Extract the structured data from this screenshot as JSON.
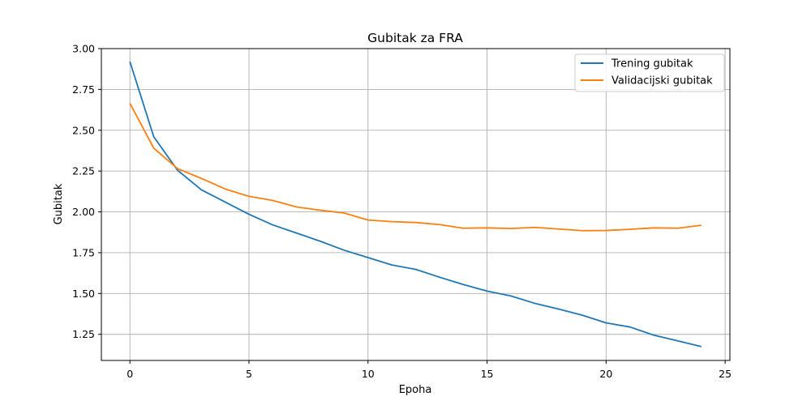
{
  "chart_data": {
    "type": "line",
    "title": "Gubitak za FRA",
    "xlabel": "Epoha",
    "ylabel": "Gubitak",
    "xlim": [
      -1.2,
      25.2
    ],
    "ylim": [
      1.09,
      3.0
    ],
    "xticks": [
      0,
      5,
      10,
      15,
      20,
      25
    ],
    "yticks": [
      1.25,
      1.5,
      1.75,
      2.0,
      2.25,
      2.5,
      2.75,
      3.0
    ],
    "ytick_labels": [
      "1.25",
      "1.50",
      "1.75",
      "2.00",
      "2.25",
      "2.50",
      "2.75",
      "3.00"
    ],
    "grid": true,
    "legend_position": "top-right",
    "x": [
      0,
      1,
      2,
      3,
      4,
      5,
      6,
      7,
      8,
      9,
      10,
      11,
      12,
      13,
      14,
      15,
      16,
      17,
      18,
      19,
      20,
      21,
      22,
      23,
      24
    ],
    "series": [
      {
        "name": "Trening gubitak",
        "color": "#1f77b4",
        "values": [
          2.92,
          2.46,
          2.255,
          2.135,
          2.06,
          1.985,
          1.92,
          1.87,
          1.82,
          1.765,
          1.72,
          1.675,
          1.648,
          1.6,
          1.555,
          1.515,
          1.485,
          1.44,
          1.405,
          1.367,
          1.32,
          1.295,
          1.245,
          1.21,
          1.175
        ]
      },
      {
        "name": "Validacijski gubitak",
        "color": "#ff7f0e",
        "values": [
          2.665,
          2.39,
          2.265,
          2.205,
          2.14,
          2.095,
          2.07,
          2.03,
          2.01,
          1.993,
          1.95,
          1.94,
          1.935,
          1.922,
          1.9,
          1.902,
          1.898,
          1.905,
          1.895,
          1.885,
          1.886,
          1.893,
          1.902,
          1.9,
          1.918
        ]
      }
    ]
  }
}
